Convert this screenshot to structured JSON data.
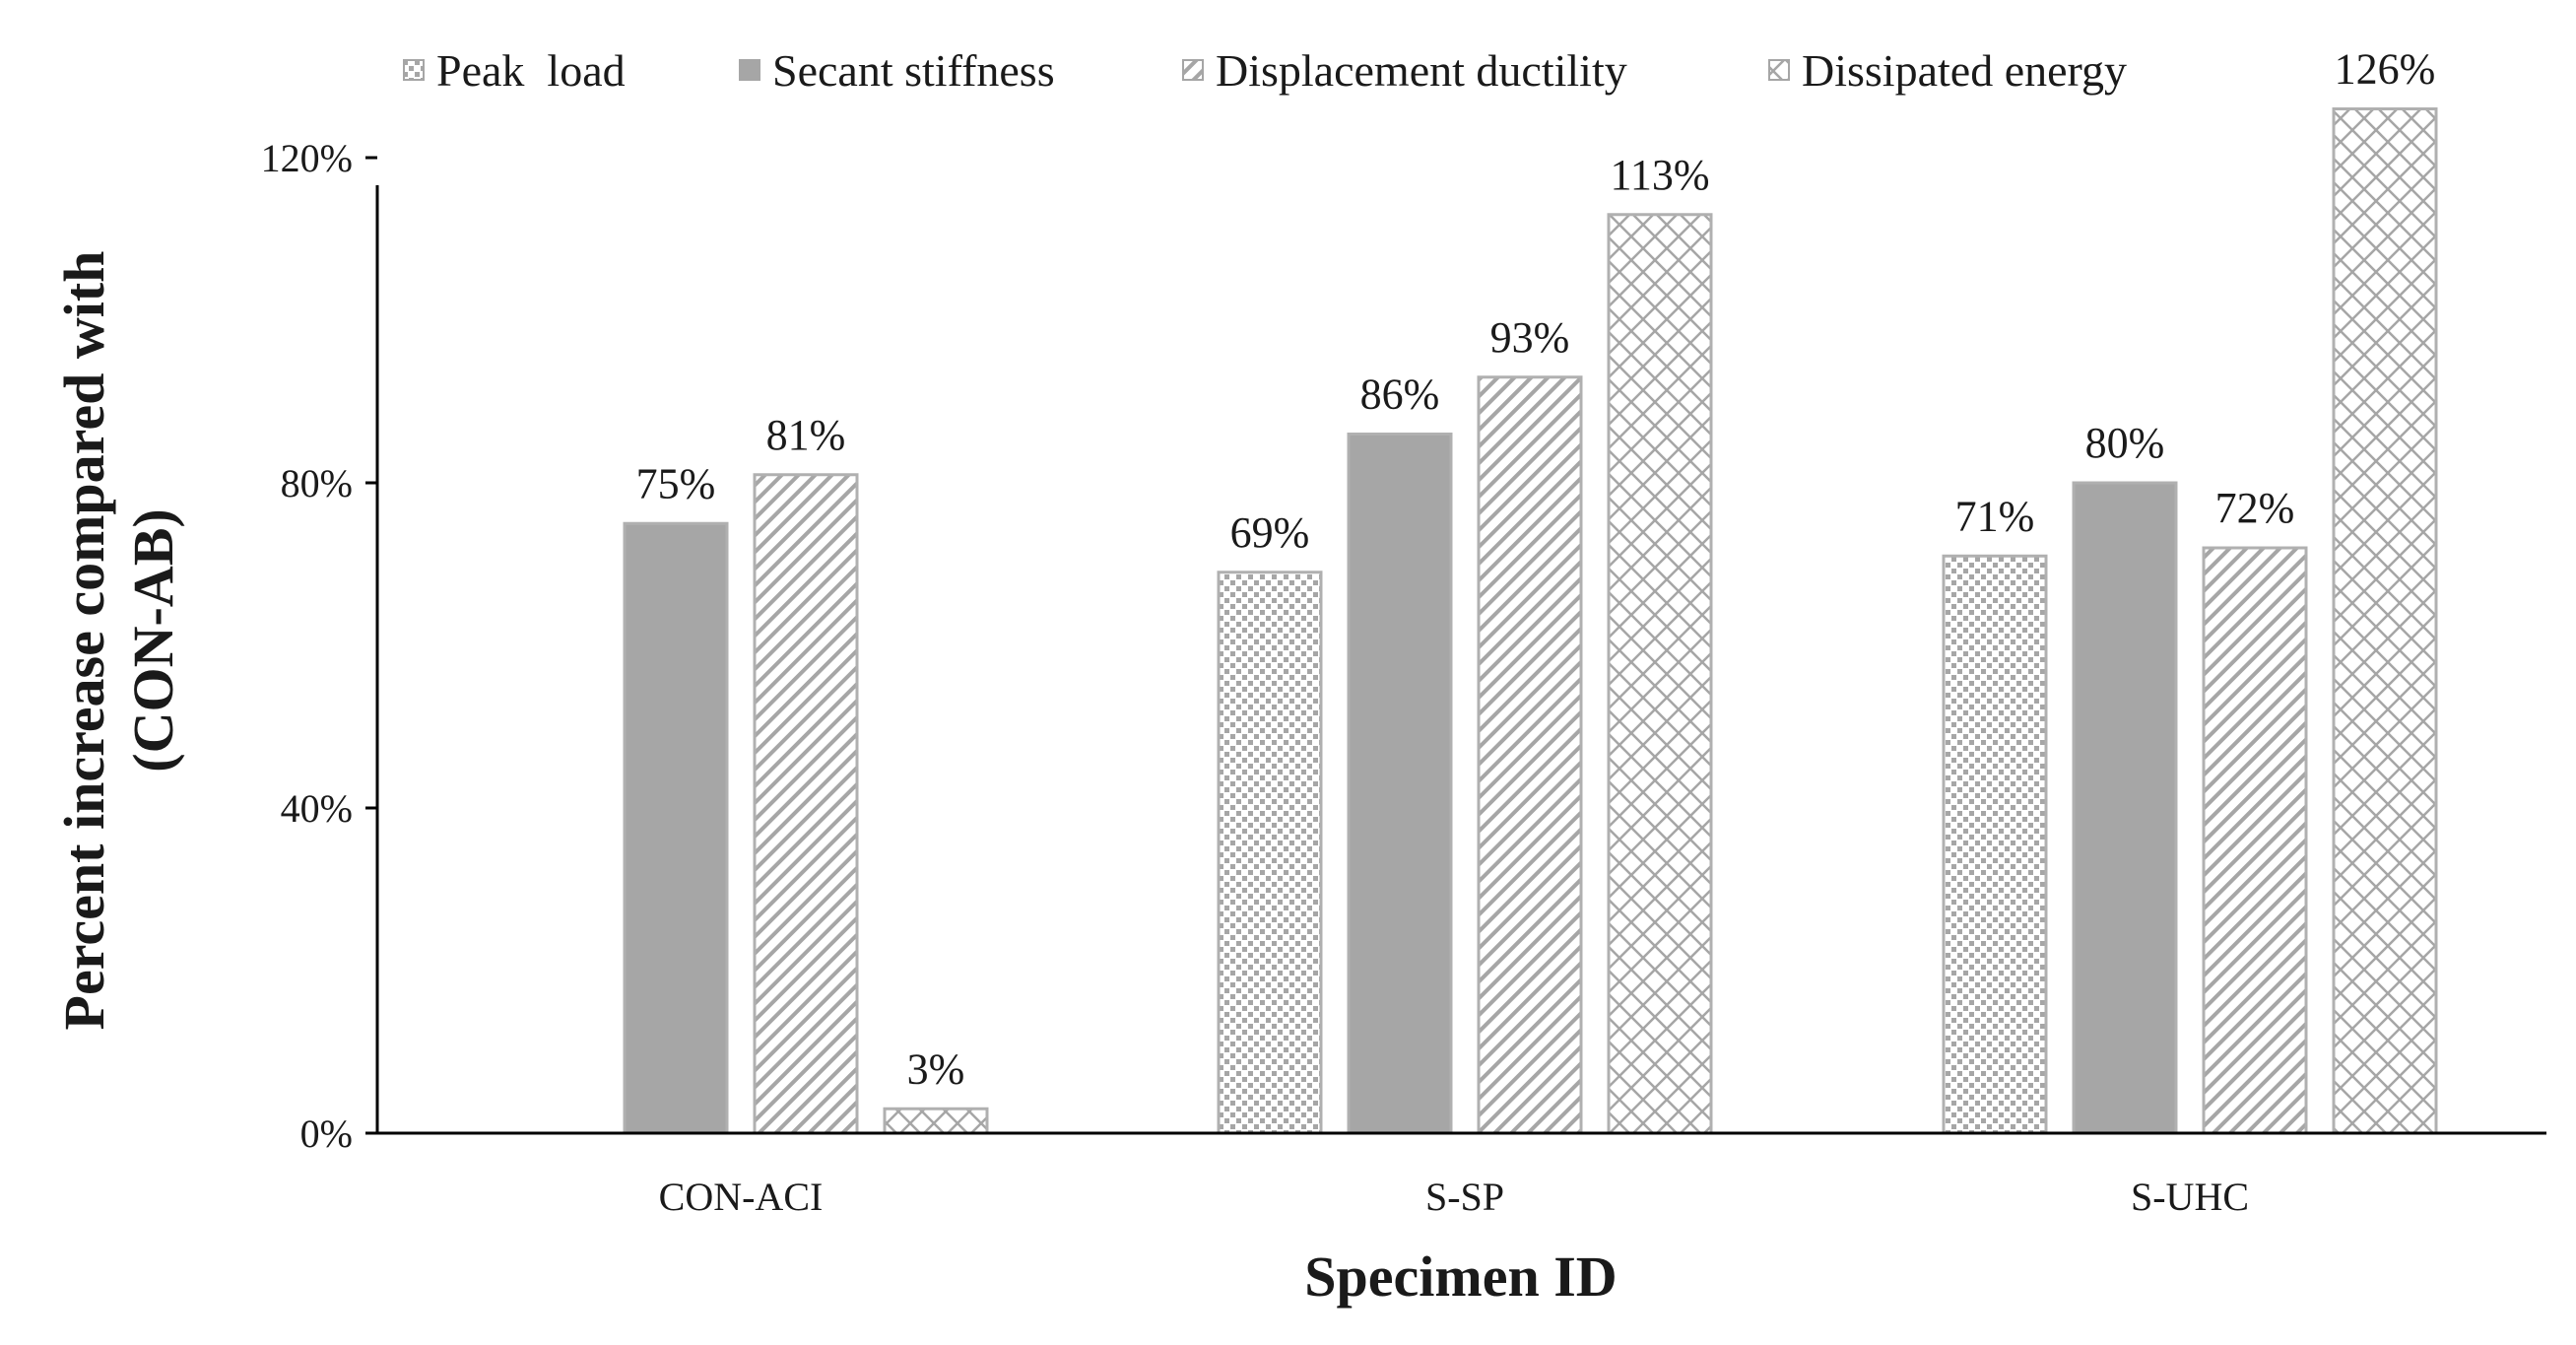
{
  "chart_data": {
    "type": "bar",
    "title": "",
    "xlabel": "Specimen ID",
    "ylabel_lines": [
      "Percent increase compared with",
      "(CON-AB)"
    ],
    "categories": [
      "CON-ACI",
      "S-SP",
      "S-UHC"
    ],
    "series": [
      {
        "name": "Peak  load",
        "pattern": "dots",
        "values": [
          0,
          69,
          71
        ],
        "labels": [
          "",
          "69%",
          "71%"
        ]
      },
      {
        "name": "Secant stiffness",
        "pattern": "solid",
        "values": [
          75,
          86,
          80
        ],
        "labels": [
          "75%",
          "86%",
          "80%"
        ]
      },
      {
        "name": "Displacement ductility",
        "pattern": "diagonal",
        "values": [
          81,
          93,
          72
        ],
        "labels": [
          "81%",
          "93%",
          "72%"
        ]
      },
      {
        "name": "Dissipated energy",
        "pattern": "crosshatch",
        "values": [
          3,
          113,
          126
        ],
        "labels": [
          "3%",
          "113%",
          "126%"
        ]
      }
    ],
    "ylim": [
      0,
      140
    ],
    "yticks": [
      0,
      40,
      80,
      120
    ],
    "ytick_labels": [
      "0%",
      "40%",
      "80%",
      "120%"
    ],
    "grid": false,
    "legend_position": "top",
    "colors": {
      "bar_fill": "#a6a6a6",
      "bar_stroke": "#b0b0b0",
      "pattern_background": "#ffffff",
      "axis": "#000000"
    }
  }
}
